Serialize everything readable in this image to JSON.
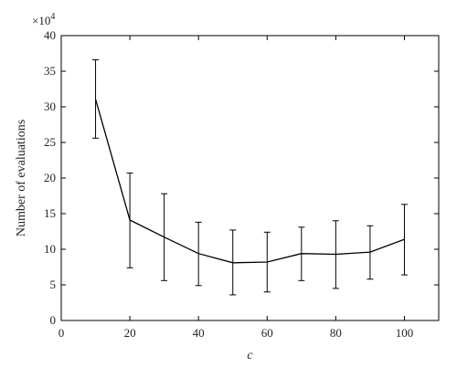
{
  "chart_data": {
    "type": "line",
    "title": "",
    "xlabel": "c",
    "ylabel": "Number of evaluations",
    "y_multiplier_label": "×10",
    "y_multiplier_exponent": "4",
    "xlim": [
      0,
      110
    ],
    "ylim": [
      0,
      40
    ],
    "xticks": [
      0,
      20,
      40,
      60,
      80,
      100
    ],
    "yticks": [
      0,
      5,
      10,
      15,
      20,
      25,
      30,
      35,
      40
    ],
    "grid": false,
    "series": [
      {
        "x": [
          10,
          20,
          30,
          40,
          50,
          60,
          70,
          80,
          90,
          100
        ],
        "y": [
          31.1,
          14.1,
          11.7,
          9.4,
          8.1,
          8.2,
          9.4,
          9.3,
          9.6,
          11.4
        ],
        "err_low": [
          25.6,
          7.4,
          5.6,
          4.9,
          3.6,
          4.0,
          5.6,
          4.5,
          5.8,
          6.4
        ],
        "err_high": [
          36.6,
          20.7,
          17.8,
          13.8,
          12.7,
          12.4,
          13.1,
          14.0,
          13.3,
          16.3
        ],
        "color": "#000000"
      }
    ]
  }
}
